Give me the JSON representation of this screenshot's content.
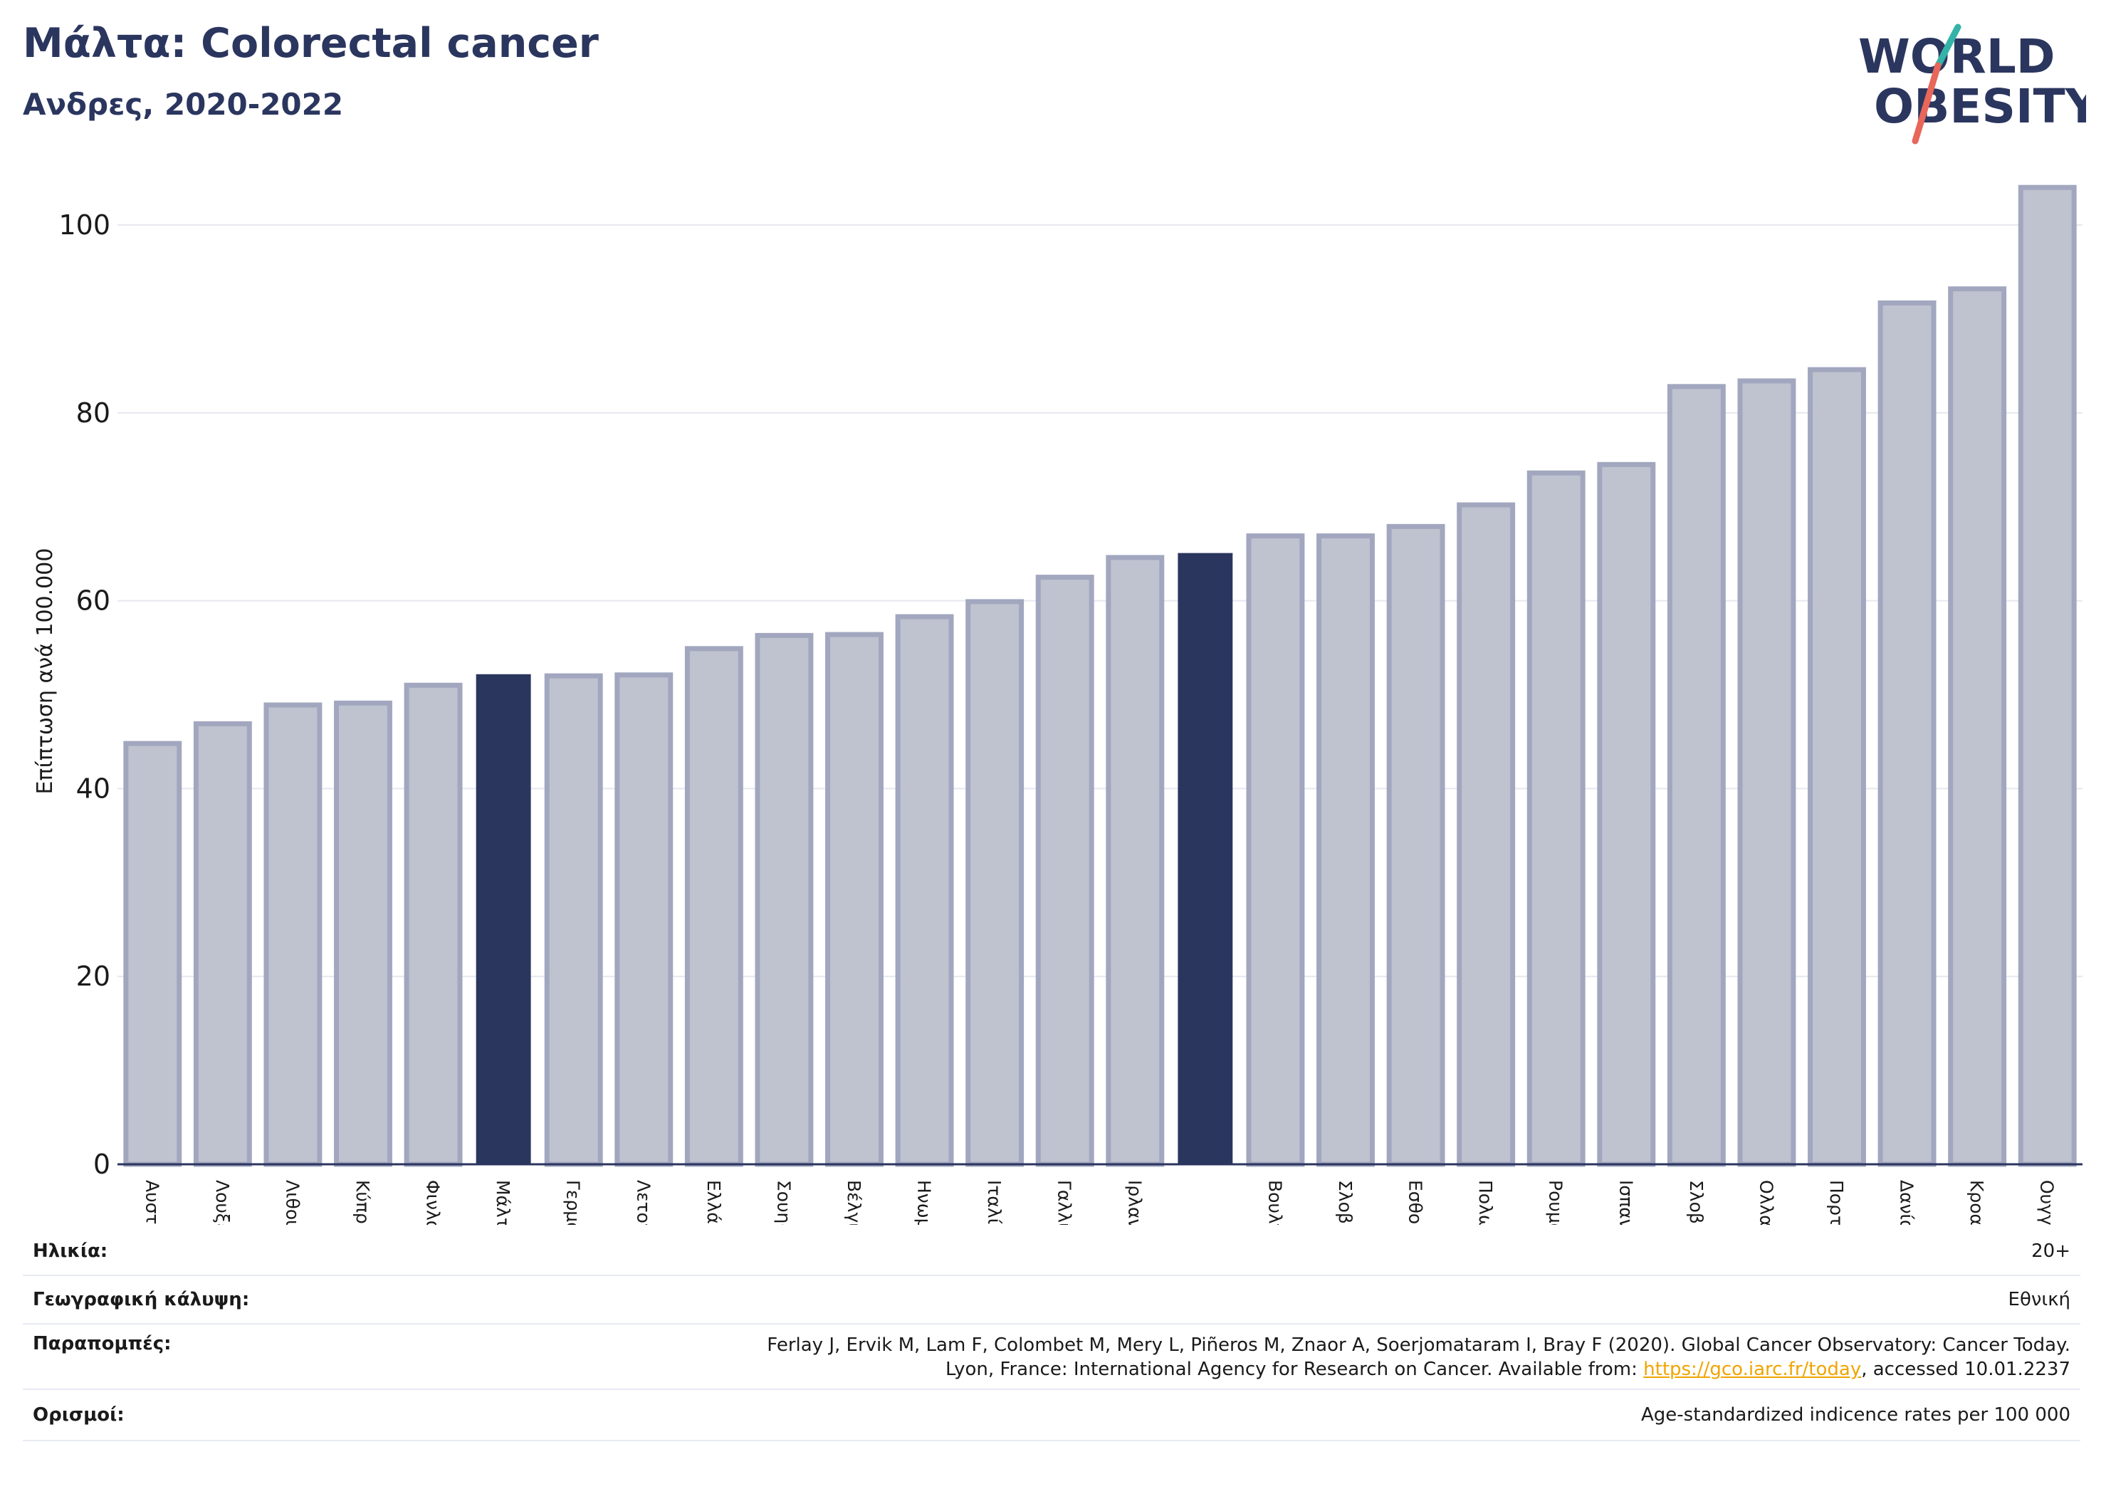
{
  "header": {
    "title": "Μάλτα: Colorectal cancer",
    "subtitle": "Ανδρες, 2020-2022"
  },
  "logo": {
    "line1": "WORLD",
    "line2": "OBESITY"
  },
  "chart_data": {
    "type": "bar",
    "ylabel": "Επίπτωση ανά 100.000",
    "ylim": [
      0,
      105
    ],
    "yticks": [
      0,
      20,
      40,
      60,
      80,
      100
    ],
    "grid": true,
    "categories": [
      "Αυστρία",
      "Λουξεμβούργο",
      "Λιθουανία",
      "Κύπρος",
      "Φινλανδία",
      "Μάλτα",
      "Γερμανία",
      "Λετονία",
      "Ελλάδα",
      "Σουηδία",
      "Βέλγιο",
      "Ηνωμένο Βασίλειο",
      "Ιταλία",
      "Γαλλία",
      "Ιρλανδία",
      "",
      "Βουλγαρία",
      "Σλοβενία",
      "Εσθονία",
      "Πολωνία",
      "Ρουμανία",
      "Ισπανία",
      "Σλοβακία",
      "Ολλανδία",
      "Πορτογαλία",
      "Δανία",
      "Κροατία",
      "Ουγγαρία"
    ],
    "values": [
      44.8,
      46.9,
      48.9,
      49.1,
      51.0,
      52.1,
      52.0,
      52.1,
      54.9,
      56.3,
      56.4,
      58.3,
      59.9,
      62.5,
      64.6,
      65.0,
      66.9,
      66.9,
      67.9,
      70.2,
      73.6,
      74.5,
      82.8,
      83.4,
      84.6,
      91.7,
      93.2,
      104.0
    ],
    "highlighted": [
      5,
      15
    ],
    "colors": {
      "bar": "#bfc2cf",
      "bar_border": "#a2a7bf",
      "highlight": "#2b365f"
    }
  },
  "info_table": {
    "age_label": "Ηλικία:",
    "age_value": "20+",
    "coverage_label": "Γεωγραφική κάλυψη:",
    "coverage_value": "Εθνική",
    "refs_label": "Παραπομπές:",
    "refs_line1": "Ferlay J, Ervik M, Lam F, Colombet M, Mery L, Piñeros M, Znaor A, Soerjomataram I, Bray F (2020). Global Cancer Observatory: Cancer Today.",
    "refs_line2_pre": "Lyon, France: International Agency for Research on Cancer. Available from: ",
    "refs_link": "https://gco.iarc.fr/today",
    "refs_line2_post": ", accessed 10.01.2237",
    "defs_label": "Ορισμοί:",
    "defs_value": "Age-standardized indicence rates per 100 000"
  }
}
